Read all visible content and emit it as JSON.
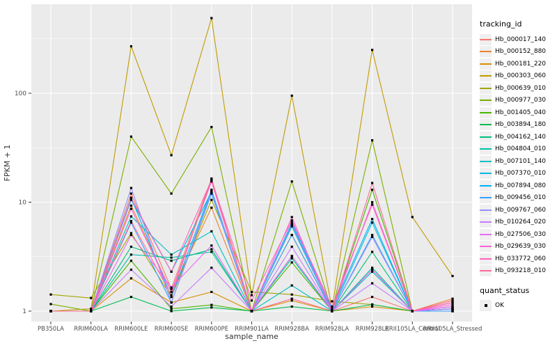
{
  "chart_data": {
    "type": "line",
    "title": "",
    "xlabel": "sample_name",
    "ylabel": "FPKM + 1",
    "y_scale": "log10",
    "y_ticks": [
      "1",
      "10",
      "100"
    ],
    "y_minor_ticks": [
      3.162,
      31.62,
      316.2
    ],
    "ylim": [
      0.8,
      660
    ],
    "grid": "white-on-gray",
    "panel_bg": "#EBEBEB",
    "grid_color": "#FFFFFF",
    "tick_text_color": "#4D4D4D",
    "x_categories": [
      "PB350LA",
      "RRIM600LA",
      "RRIM600LE",
      "RRIM600SE",
      "RRIM600PE",
      "RRIM901LA",
      "RRIM928BA",
      "RRIM928LA",
      "RRIM928LE",
      "RRII105LA_Control",
      "RRII105LA_Stressed"
    ],
    "legend": {
      "title": "tracking_id",
      "position": "right"
    },
    "shape_legend": {
      "title": "quant_status",
      "items": [
        {
          "label": "OK",
          "marker": "black-square"
        }
      ]
    },
    "series": [
      {
        "name": "Hb_000017_140",
        "color": "#F8766D",
        "values": [
          1.0,
          1.0,
          12.0,
          1.6,
          16.5,
          1.0,
          6.2,
          1.0,
          1.35,
          1.0,
          1.05
        ]
      },
      {
        "name": "Hb_000152_880",
        "color": "#EA8331",
        "values": [
          1.0,
          1.0,
          9.3,
          1.5,
          8.9,
          1.0,
          5.0,
          1.0,
          2.4,
          1.0,
          1.3
        ]
      },
      {
        "name": "Hb_000181_220",
        "color": "#D89000",
        "values": [
          1.0,
          1.0,
          2.0,
          1.2,
          1.5,
          1.0,
          1.25,
          1.0,
          1.1,
          1.0,
          1.2
        ]
      },
      {
        "name": "Hb_000303_060",
        "color": "#C09B00",
        "values": [
          1.0,
          1.05,
          270,
          27,
          490,
          1.4,
          95,
          1.05,
          250,
          7.3,
          2.1
        ]
      },
      {
        "name": "Hb_000639_010",
        "color": "#A3A500",
        "values": [
          1.42,
          1.32,
          5.2,
          1.35,
          10.5,
          1.5,
          1.42,
          1.23,
          1.15,
          1.0,
          1.1
        ]
      },
      {
        "name": "Hb_000977_030",
        "color": "#7CAE00",
        "values": [
          1.16,
          1.0,
          40,
          12,
          49,
          1.0,
          15.5,
          1.0,
          37,
          1.0,
          1.0
        ]
      },
      {
        "name": "Hb_001405_040",
        "color": "#49B500",
        "values": [
          1.0,
          1.0,
          2.9,
          1.05,
          1.14,
          1.0,
          2.8,
          1.0,
          13.0,
          1.0,
          1.05
        ]
      },
      {
        "name": "Hb_003894_180",
        "color": "#00BB4E",
        "values": [
          1.0,
          1.0,
          1.35,
          1.0,
          1.08,
          1.0,
          1.1,
          1.0,
          1.15,
          1.0,
          1.0
        ]
      },
      {
        "name": "Hb_004162_140",
        "color": "#00BF7D",
        "values": [
          1.0,
          1.0,
          3.9,
          2.9,
          3.7,
          1.0,
          3.2,
          1.0,
          3.5,
          1.0,
          1.05
        ]
      },
      {
        "name": "Hb_004804_010",
        "color": "#00C1A7",
        "values": [
          1.0,
          1.0,
          3.3,
          3.1,
          3.5,
          1.0,
          3.05,
          1.0,
          2.5,
          1.0,
          1.0
        ]
      },
      {
        "name": "Hb_007101_140",
        "color": "#00BFC4",
        "values": [
          1.0,
          1.0,
          7.4,
          3.3,
          5.4,
          1.0,
          1.72,
          1.0,
          2.3,
          1.0,
          1.05
        ]
      },
      {
        "name": "Hb_007370_010",
        "color": "#00BAE0",
        "values": [
          1.0,
          1.0,
          10.5,
          2.3,
          12.5,
          1.0,
          6.0,
          1.0,
          6.5,
          1.0,
          1.0
        ]
      },
      {
        "name": "Hb_007894_080",
        "color": "#00B0F6",
        "values": [
          1.0,
          1.0,
          11.0,
          1.35,
          13.0,
          1.0,
          6.5,
          1.05,
          7.0,
          1.0,
          1.05
        ]
      },
      {
        "name": "Hb_009456_010",
        "color": "#35A2FF",
        "values": [
          1.0,
          1.0,
          6.5,
          1.2,
          12.0,
          1.0,
          5.0,
          1.0,
          5.0,
          1.0,
          1.0
        ]
      },
      {
        "name": "Hb_009767_060",
        "color": "#9590FF",
        "values": [
          1.0,
          1.0,
          13.5,
          1.2,
          12.6,
          1.0,
          6.3,
          1.0,
          4.8,
          1.0,
          1.1
        ]
      },
      {
        "name": "Hb_010264_020",
        "color": "#C77CFF",
        "values": [
          1.0,
          1.0,
          2.4,
          1.1,
          2.5,
          1.0,
          3.9,
          1.0,
          1.8,
          1.0,
          1.05
        ]
      },
      {
        "name": "Hb_027506_030",
        "color": "#E76BF3",
        "values": [
          1.0,
          1.0,
          5.0,
          1.65,
          4.0,
          1.0,
          3.2,
          1.0,
          2.4,
          1.0,
          1.1
        ]
      },
      {
        "name": "Hb_029639_030",
        "color": "#FA62DB",
        "values": [
          1.0,
          1.0,
          8.7,
          1.5,
          15.5,
          1.0,
          7.3,
          1.0,
          10.0,
          1.0,
          1.15
        ]
      },
      {
        "name": "Hb_033772_060",
        "color": "#FF62BC",
        "values": [
          1.0,
          1.0,
          10.8,
          2.3,
          16.0,
          1.25,
          6.8,
          1.1,
          9.5,
          1.0,
          1.2
        ]
      },
      {
        "name": "Hb_093218_010",
        "color": "#FF6A98",
        "values": [
          1.0,
          1.0,
          6.7,
          1.4,
          16.2,
          1.0,
          1.3,
          1.0,
          15.0,
          1.0,
          1.25
        ]
      }
    ]
  }
}
